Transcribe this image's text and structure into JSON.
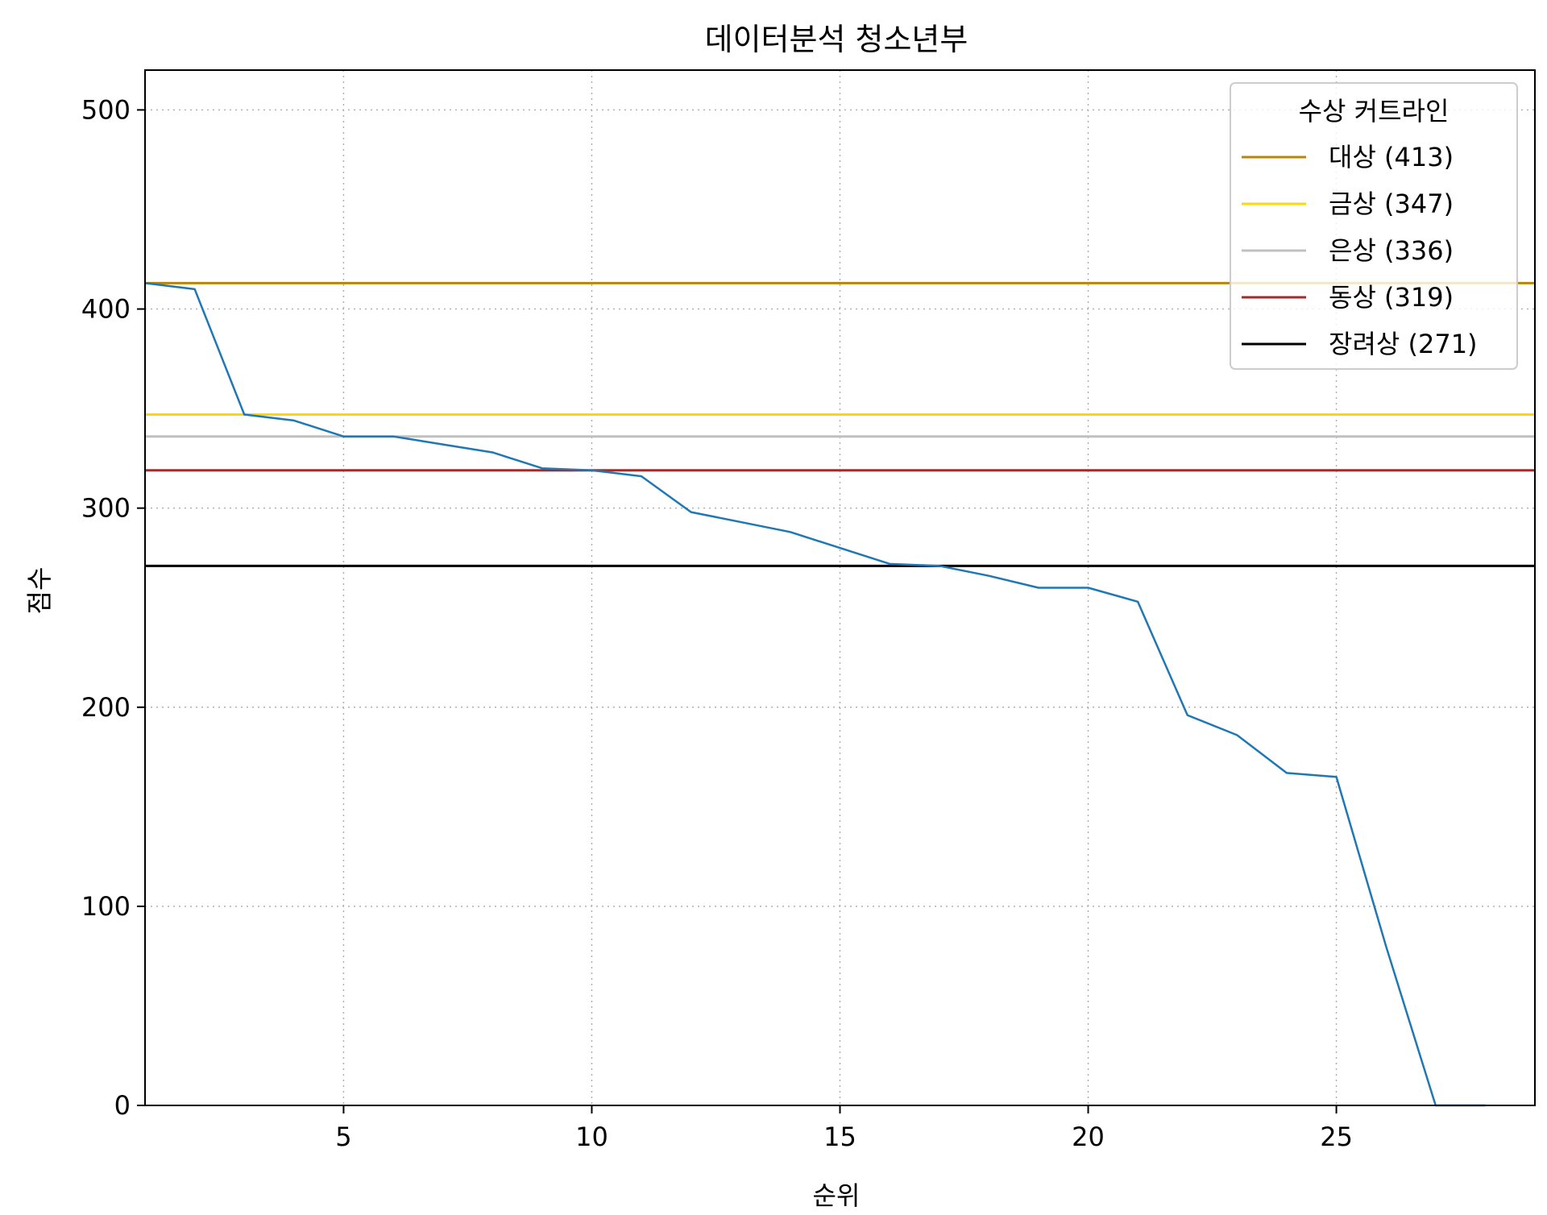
{
  "chart_data": {
    "type": "line",
    "title": "데이터분석 청소년부",
    "xlabel": "순위",
    "ylabel": "점수",
    "xlim": [
      1,
      29
    ],
    "ylim": [
      0,
      520
    ],
    "xticks": [
      5,
      10,
      15,
      20,
      25
    ],
    "yticks": [
      0,
      100,
      200,
      300,
      400,
      500
    ],
    "grid": true,
    "legend_position": "top-right",
    "series": [
      {
        "color": "#1f77b4",
        "x": [
          1,
          2,
          3,
          4,
          5,
          6,
          7,
          8,
          9,
          10,
          11,
          12,
          13,
          14,
          15,
          16,
          17,
          18,
          19,
          20,
          21,
          22,
          23,
          24,
          25,
          26,
          27,
          28
        ],
        "y": [
          413,
          410,
          347,
          344,
          336,
          336,
          332,
          328,
          320,
          319,
          316,
          298,
          293,
          288,
          280,
          272,
          271,
          266,
          260,
          260,
          253,
          196,
          186,
          167,
          165,
          80,
          0,
          0
        ]
      }
    ],
    "reference_lines": {
      "legend_title": "수상 커트라인",
      "lines": [
        {
          "label": "대상 (413)",
          "value": 413,
          "color": "#b8860b"
        },
        {
          "label": "금상 (347)",
          "value": 347,
          "color": "#ffd700"
        },
        {
          "label": "은상 (336)",
          "value": 336,
          "color": "#c0c0c0"
        },
        {
          "label": "동상 (319)",
          "value": 319,
          "color": "#a52a2a"
        },
        {
          "label": "장려상 (271)",
          "value": 271,
          "color": "#000000"
        }
      ]
    }
  }
}
